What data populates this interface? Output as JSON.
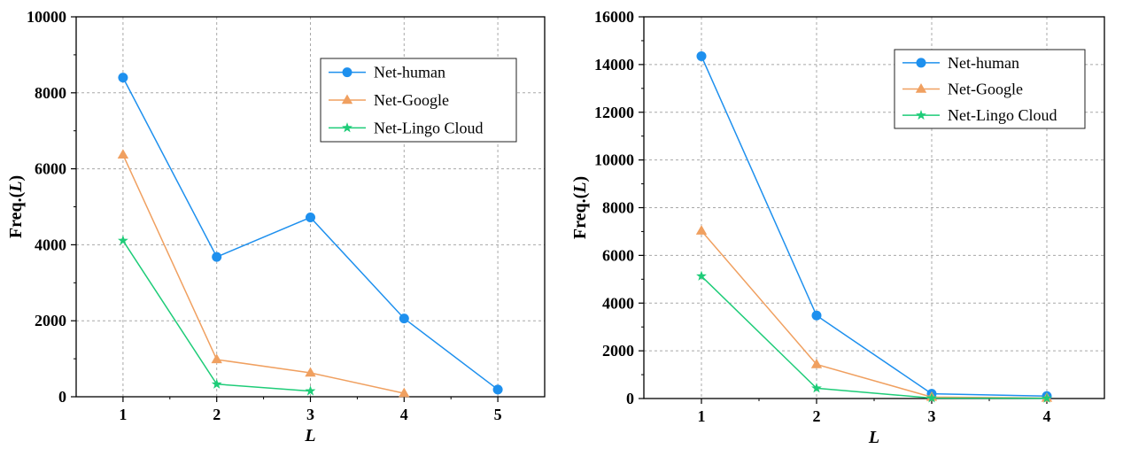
{
  "chart_data": [
    {
      "type": "line",
      "title": "",
      "xlabel": "L",
      "ylabel_prefix": "Freq.(",
      "ylabel_var": "L",
      "ylabel_suffix": ")",
      "xlim": [
        0.5,
        5.5
      ],
      "ylim": [
        0,
        10000
      ],
      "x_ticks": [
        1,
        2,
        3,
        4,
        5
      ],
      "y_ticks": [
        0,
        2000,
        4000,
        6000,
        8000,
        10000
      ],
      "grid": true,
      "legend_position": "top-right",
      "series": [
        {
          "name": "Net-human",
          "marker": "circle",
          "color": "#1E90EE",
          "x": [
            1,
            2,
            3,
            4,
            5
          ],
          "y": [
            8400,
            3680,
            4720,
            2060,
            190
          ]
        },
        {
          "name": "Net-Google",
          "marker": "triangle",
          "color": "#F0A060",
          "x": [
            1,
            2,
            3,
            4
          ],
          "y": [
            6370,
            980,
            630,
            90
          ]
        },
        {
          "name": "Net-Lingo Cloud",
          "marker": "star",
          "color": "#1ECC78",
          "x": [
            1,
            2,
            3
          ],
          "y": [
            4110,
            330,
            150
          ]
        }
      ]
    },
    {
      "type": "line",
      "title": "",
      "xlabel": "L",
      "ylabel_prefix": "Freq.(",
      "ylabel_var": "L",
      "ylabel_suffix": ")",
      "xlim": [
        0.5,
        4.5
      ],
      "ylim": [
        0,
        16000
      ],
      "x_ticks": [
        1,
        2,
        3,
        4
      ],
      "y_ticks": [
        0,
        2000,
        4000,
        6000,
        8000,
        10000,
        12000,
        14000,
        16000
      ],
      "grid": true,
      "legend_position": "top-right",
      "series": [
        {
          "name": "Net-human",
          "marker": "circle",
          "color": "#1E90EE",
          "x": [
            1,
            2,
            3,
            4
          ],
          "y": [
            14350,
            3480,
            200,
            100
          ]
        },
        {
          "name": "Net-Google",
          "marker": "triangle",
          "color": "#F0A060",
          "x": [
            1,
            2,
            3,
            4
          ],
          "y": [
            7030,
            1430,
            60,
            20
          ]
        },
        {
          "name": "Net-Lingo Cloud",
          "marker": "star",
          "color": "#1ECC78",
          "x": [
            1,
            2,
            3,
            4
          ],
          "y": [
            5130,
            430,
            20,
            10
          ]
        }
      ]
    }
  ]
}
